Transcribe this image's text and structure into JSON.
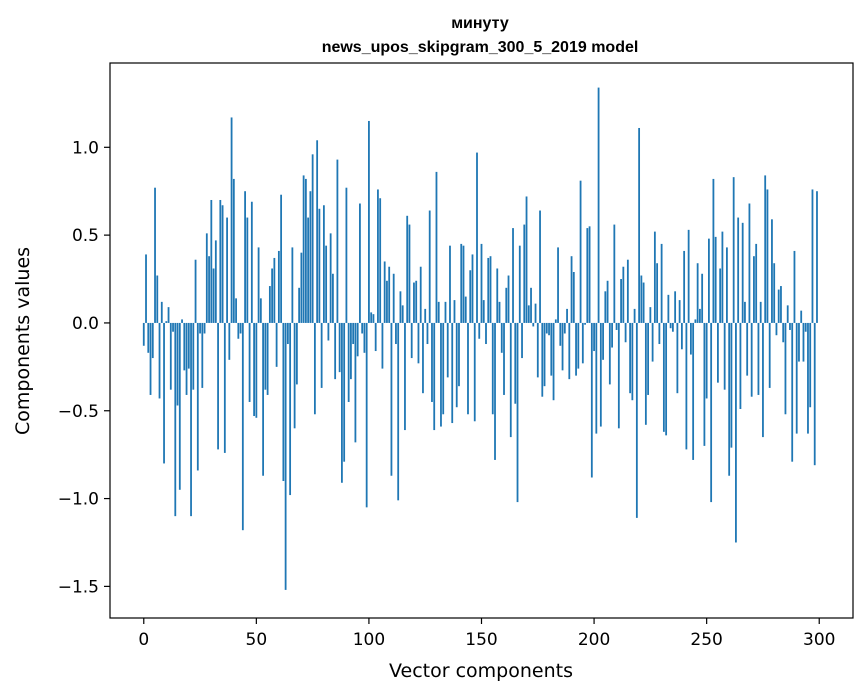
{
  "chart_data": {
    "type": "bar",
    "title_line1": "минуту",
    "title_line2": "news_upos_skipgram_300_5_2019 model",
    "xlabel": "Vector components",
    "ylabel": "Components values",
    "xlim": [
      -15,
      315
    ],
    "ylim": [
      -1.68,
      1.48
    ],
    "x_ticks": [
      0,
      50,
      100,
      150,
      200,
      250,
      300
    ],
    "x_tick_labels": [
      "0",
      "50",
      "100",
      "150",
      "200",
      "250",
      "300"
    ],
    "y_ticks": [
      -1.5,
      -1.0,
      -0.5,
      0.0,
      0.5,
      1.0
    ],
    "y_tick_labels": [
      "−1.5",
      "−1.0",
      "−0.5",
      "0.0",
      "0.5",
      "1.0"
    ],
    "bar_color": "#1f77b4",
    "values": [
      -0.13,
      0.39,
      -0.17,
      -0.41,
      -0.2,
      0.77,
      0.27,
      -0.43,
      0.12,
      -0.8,
      0.01,
      0.09,
      -0.38,
      -0.05,
      -1.1,
      -0.47,
      -0.95,
      0.02,
      -0.27,
      -0.41,
      -0.26,
      -1.1,
      -0.38,
      0.36,
      -0.84,
      -0.06,
      -0.37,
      -0.06,
      0.51,
      0.38,
      0.7,
      0.31,
      0.47,
      -0.72,
      0.7,
      0.67,
      -0.74,
      0.6,
      -0.21,
      1.17,
      0.82,
      0.14,
      -0.09,
      -0.06,
      -1.18,
      0.75,
      0.6,
      -0.45,
      0.69,
      -0.53,
      -0.54,
      0.43,
      0.14,
      -0.87,
      -0.38,
      -0.41,
      0.21,
      0.31,
      0.37,
      -0.25,
      0.41,
      0.73,
      -0.9,
      -1.52,
      -0.12,
      -0.98,
      0.43,
      -0.6,
      -0.35,
      0.2,
      0.4,
      0.84,
      0.82,
      0.6,
      0.75,
      0.96,
      -0.52,
      1.04,
      0.65,
      -0.37,
      0.67,
      0.44,
      -0.1,
      0.51,
      0.28,
      -0.32,
      0.93,
      -0.28,
      -0.91,
      -0.79,
      0.77,
      -0.45,
      -0.32,
      -0.12,
      -0.68,
      -0.19,
      0.68,
      -0.06,
      -0.17,
      -1.05,
      1.15,
      0.06,
      0.05,
      -0.16,
      0.76,
      0.71,
      -0.26,
      0.35,
      0.24,
      0.32,
      -0.87,
      0.28,
      -0.12,
      -1.01,
      0.18,
      0.1,
      -0.61,
      0.61,
      0.56,
      -0.2,
      0.23,
      0.24,
      -0.23,
      0.32,
      -0.4,
      0.08,
      -0.12,
      0.64,
      -0.45,
      -0.61,
      0.86,
      0.12,
      -0.59,
      -0.52,
      0.12,
      -0.31,
      0.44,
      -0.57,
      0.13,
      -0.48,
      -0.36,
      0.45,
      0.44,
      0.15,
      -0.52,
      0.3,
      0.39,
      -0.56,
      0.97,
      -0.09,
      0.45,
      0.13,
      -0.12,
      0.37,
      0.38,
      -0.52,
      -0.78,
      0.31,
      0.12,
      -0.17,
      -0.41,
      0.2,
      0.27,
      -0.65,
      0.54,
      -0.46,
      -1.02,
      0.44,
      -0.2,
      0.56,
      0.72,
      0.1,
      0.2,
      -0.02,
      0.11,
      -0.31,
      0.64,
      -0.42,
      -0.36,
      -0.06,
      -0.07,
      -0.3,
      -0.44,
      0.02,
      0.43,
      -0.13,
      -0.27,
      -0.06,
      0.08,
      -0.32,
      0.38,
      0.29,
      -0.3,
      -0.26,
      0.81,
      -0.23,
      -0.01,
      0.54,
      0.55,
      -0.88,
      -0.16,
      -0.63,
      1.34,
      -0.59,
      -0.21,
      0.18,
      0.24,
      -0.35,
      -0.14,
      0.56,
      -0.04,
      -0.6,
      0.25,
      0.32,
      -0.11,
      0.36,
      -0.4,
      -0.44,
      0.08,
      -1.11,
      1.11,
      0.27,
      0.23,
      -0.58,
      -0.41,
      0.09,
      -0.22,
      0.52,
      0.34,
      -0.12,
      0.45,
      -0.62,
      -0.64,
      0.16,
      -0.03,
      -0.05,
      0.18,
      -0.4,
      0.13,
      -0.15,
      0.41,
      -0.72,
      0.53,
      -0.18,
      -0.78,
      0.02,
      0.34,
      0.08,
      0.28,
      -0.7,
      -0.43,
      0.48,
      -1.02,
      0.82,
      0.49,
      -0.34,
      0.31,
      0.52,
      -0.38,
      0.43,
      -0.87,
      -0.71,
      0.83,
      -1.25,
      0.6,
      -0.49,
      0.57,
      0.12,
      -0.3,
      0.68,
      -0.42,
      0.38,
      0.45,
      -0.41,
      0.12,
      -0.65,
      0.84,
      0.76,
      -0.37,
      0.59,
      0.34,
      -0.07,
      0.19,
      0.21,
      -0.11,
      -0.52,
      0.1,
      -0.04,
      -0.79,
      0.41,
      -0.63,
      -0.22,
      0.07,
      -0.22,
      -0.05,
      -0.63,
      -0.48,
      0.76,
      -0.81,
      0.75
    ]
  }
}
